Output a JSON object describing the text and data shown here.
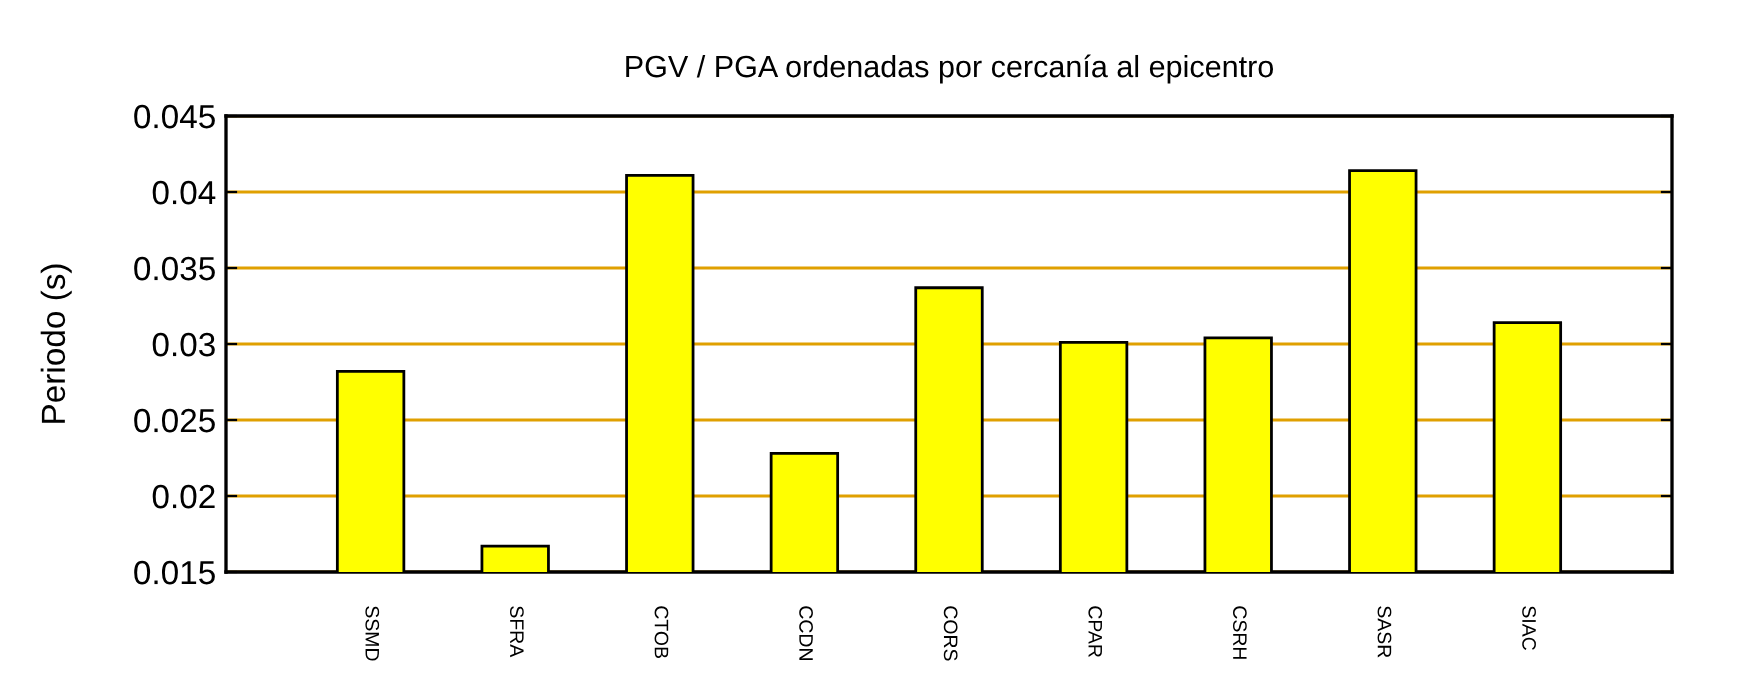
{
  "chart_data": {
    "type": "bar",
    "title": "PGV / PGA ordenadas por cercanía al epicentro",
    "ylabel": "Periodo (s)",
    "categories": [
      "SSMD",
      "SFRA",
      "CTOB",
      "CCDN",
      "CORS",
      "CPAR",
      "CSRH",
      "SASR",
      "SIAC"
    ],
    "values": [
      0.0282,
      0.0167,
      0.0411,
      0.0228,
      0.0337,
      0.0301,
      0.0304,
      0.0414,
      0.0314
    ],
    "color": "#ffff00",
    "ylim": [
      0.015,
      0.045
    ],
    "yticks": [
      0.015,
      0.02,
      0.025,
      0.03,
      0.035,
      0.04,
      0.045
    ],
    "grid": "y"
  }
}
